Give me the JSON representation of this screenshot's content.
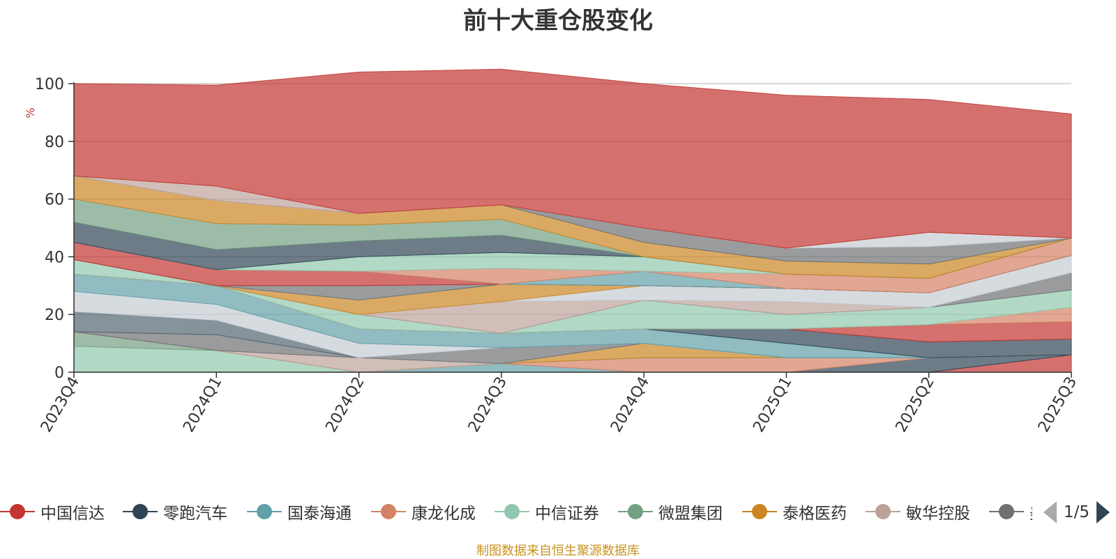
{
  "chart_data": {
    "type": "area",
    "stacked": true,
    "title": "前十大重仓股变化",
    "ylabel": "%",
    "ylim": [
      0,
      100
    ],
    "yticks": [
      0,
      20,
      40,
      60,
      80,
      100
    ],
    "categories": [
      "2023Q4",
      "2024Q1",
      "2024Q2",
      "2024Q3",
      "2024Q4",
      "2025Q1",
      "2025Q2",
      "2025Q3"
    ],
    "series": [
      {
        "name": "中国信达",
        "color": "#c23531",
        "values": [
          0,
          0,
          0,
          0,
          0,
          0,
          0,
          6
        ]
      },
      {
        "name": "零跑汽车",
        "color": "#2f4554",
        "values": [
          0,
          0,
          0,
          0,
          0,
          0,
          5,
          0
        ]
      },
      {
        "name": "国泰海通",
        "color": "#61a0a8",
        "values": [
          0,
          0,
          0,
          3,
          0,
          0,
          0,
          0
        ]
      },
      {
        "name": "康龙化成",
        "color": "#d48265",
        "values": [
          0,
          0,
          0,
          0,
          5,
          5,
          0,
          0
        ]
      },
      {
        "name": "中信证券",
        "color": "#91c7ae",
        "values": [
          9,
          7.5,
          0,
          0,
          0,
          0,
          0,
          0
        ]
      },
      {
        "name": "微盟集团",
        "color": "#749f83",
        "values": [
          5,
          0,
          0,
          0,
          0,
          0,
          0,
          0
        ]
      },
      {
        "name": "泰格医药",
        "color": "#ca8622",
        "values": [
          0,
          0,
          0,
          0,
          5,
          0,
          0,
          0
        ]
      },
      {
        "name": "敏华控股",
        "color": "#bda29a",
        "values": [
          0,
          0,
          5,
          0,
          0,
          0,
          0,
          0
        ]
      },
      {
        "name": "",
        "color": "#6e7074",
        "values": [
          0,
          5.5,
          0,
          5.5,
          0,
          0,
          0,
          0
        ]
      },
      {
        "name": "",
        "color": "#546570",
        "values": [
          7,
          5,
          0,
          0,
          0,
          0,
          0,
          0
        ]
      },
      {
        "name": "",
        "color": "#c4ccd3",
        "values": [
          7,
          5.5,
          5,
          0,
          0,
          0,
          0,
          0
        ]
      },
      {
        "name": "",
        "color": "#61a0a8",
        "values": [
          6,
          6.5,
          5,
          5,
          5,
          5,
          0,
          0
        ]
      },
      {
        "name": "",
        "color": "#2f4554",
        "values": [
          0,
          0,
          0,
          0,
          0,
          5,
          5.5,
          5.5
        ]
      },
      {
        "name": "",
        "color": "#c23531",
        "values": [
          0,
          0,
          0,
          0,
          0,
          0,
          6,
          6
        ]
      },
      {
        "name": "",
        "color": "#d48265",
        "values": [
          0,
          0,
          0,
          0,
          0,
          0,
          0,
          5
        ]
      },
      {
        "name": "",
        "color": "#91c7ae",
        "values": [
          5,
          0,
          5,
          0,
          10,
          5,
          6,
          6
        ]
      },
      {
        "name": "",
        "color": "#6e7074",
        "values": [
          0,
          0,
          0,
          0,
          0,
          0,
          0,
          6
        ]
      },
      {
        "name": "",
        "color": "#bda29a",
        "values": [
          0,
          0,
          0,
          11,
          0,
          4.5,
          0,
          0
        ]
      },
      {
        "name": "",
        "color": "#c4ccd3",
        "values": [
          0,
          0,
          0,
          0,
          5,
          4.5,
          5,
          6
        ]
      },
      {
        "name": "",
        "color": "#ca8622",
        "values": [
          0,
          0,
          5,
          6,
          0,
          0,
          0,
          0
        ]
      },
      {
        "name": "",
        "color": "#91c7ae",
        "values": [
          0,
          0,
          0,
          0,
          0,
          0,
          0,
          0
        ]
      },
      {
        "name": "",
        "color": "#6e7074",
        "values": [
          0,
          0,
          5,
          0,
          0,
          0,
          0,
          0
        ]
      },
      {
        "name": "",
        "color": "#c23531",
        "values": [
          6,
          5.5,
          5,
          0,
          0,
          0,
          0,
          0
        ]
      },
      {
        "name": "",
        "color": "#61a0a8",
        "values": [
          0,
          0,
          0,
          0,
          5,
          0,
          0,
          0
        ]
      },
      {
        "name": "",
        "color": "#d48265",
        "values": [
          0,
          0,
          0,
          5.5,
          0,
          5,
          5,
          6
        ]
      },
      {
        "name": "",
        "color": "#91c7ae",
        "values": [
          0,
          0,
          5,
          5.5,
          5,
          0,
          0,
          0
        ]
      },
      {
        "name": "",
        "color": "#2f4554",
        "values": [
          7,
          7,
          5.5,
          6,
          0,
          0,
          0,
          0
        ]
      },
      {
        "name": "",
        "color": "#749f83",
        "values": [
          8,
          9,
          5.5,
          5.5,
          0,
          0,
          0,
          0
        ]
      },
      {
        "name": "",
        "color": "#ca8622",
        "values": [
          8,
          8,
          4,
          5,
          5,
          4.5,
          5,
          0
        ]
      },
      {
        "name": "",
        "color": "#6e7074",
        "values": [
          0,
          0,
          0,
          0,
          5,
          4.5,
          6,
          0
        ]
      },
      {
        "name": "",
        "color": "#c4ccd3",
        "values": [
          0,
          0,
          0,
          0,
          0,
          0,
          5,
          0
        ]
      },
      {
        "name": "",
        "color": "#bda29a",
        "values": [
          0,
          5,
          0,
          0,
          0,
          0,
          0,
          0
        ]
      },
      {
        "name": "",
        "color": "#c23531",
        "values": [
          32,
          35,
          49,
          47,
          50,
          53,
          46,
          43
        ]
      }
    ]
  },
  "legend": {
    "items": [
      {
        "label": "中国信达",
        "color": "#c23531"
      },
      {
        "label": "零跑汽车",
        "color": "#2f4554"
      },
      {
        "label": "国泰海通",
        "color": "#61a0a8"
      },
      {
        "label": "康龙化成",
        "color": "#d48265"
      },
      {
        "label": "中信证券",
        "color": "#91c7ae"
      },
      {
        "label": "微盟集团",
        "color": "#749f83"
      },
      {
        "label": "泰格医药",
        "color": "#ca8622"
      },
      {
        "label": "敏华控股",
        "color": "#bda29a"
      },
      {
        "label": "美",
        "color": "#6e7074"
      }
    ],
    "page_text": "1/5"
  },
  "source_note": "制图数据来自恒生聚源数据库"
}
